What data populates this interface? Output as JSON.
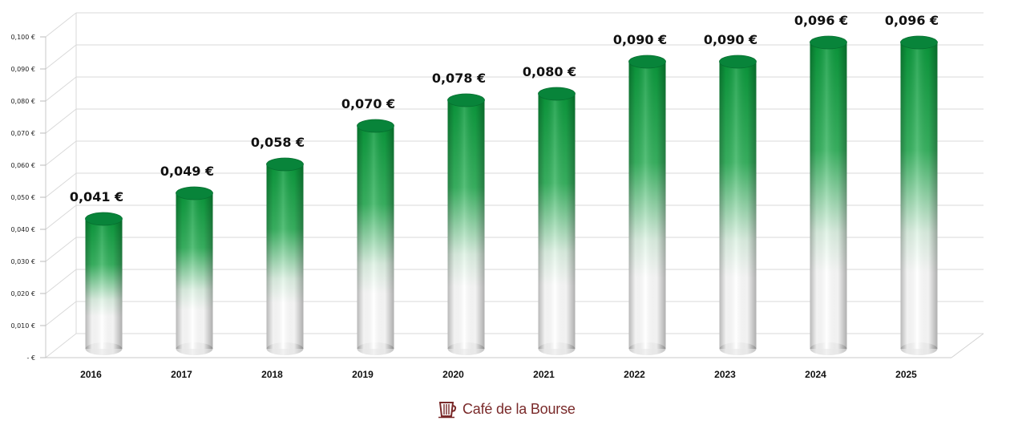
{
  "chart_data": {
    "type": "bar",
    "style": "3d-cylinder",
    "title": "",
    "xlabel": "",
    "ylabel": "",
    "categories": [
      "2016",
      "2017",
      "2018",
      "2019",
      "2020",
      "2021",
      "2022",
      "2023",
      "2024",
      "2025"
    ],
    "values": [
      0.041,
      0.049,
      0.058,
      0.07,
      0.078,
      0.08,
      0.09,
      0.09,
      0.096,
      0.096
    ],
    "data_labels": [
      "0,041 €",
      "0,049 €",
      "0,058 €",
      "0,070 €",
      "0,078 €",
      "0,080 €",
      "0,090 €",
      "0,090 €",
      "0,096 €",
      "0,096 €"
    ],
    "ylim": [
      0,
      0.1
    ],
    "y_ticks": [
      {
        "v": 0.0,
        "label": "-  €"
      },
      {
        "v": 0.01,
        "label": "0,010 €"
      },
      {
        "v": 0.02,
        "label": "0,020 €"
      },
      {
        "v": 0.03,
        "label": "0,030 €"
      },
      {
        "v": 0.04,
        "label": "0,040 €"
      },
      {
        "v": 0.05,
        "label": "0,050 €"
      },
      {
        "v": 0.06,
        "label": "0,060 €"
      },
      {
        "v": 0.07,
        "label": "0,070 €"
      },
      {
        "v": 0.08,
        "label": "0,080 €"
      },
      {
        "v": 0.09,
        "label": "0,090 €"
      },
      {
        "v": 0.1,
        "label": "0,100 €"
      }
    ],
    "grid": true,
    "legend": "none",
    "colors": {
      "bar_top": "#0a9a3c",
      "bar_bottom": "#ffffff",
      "grid": "#d9d9d9"
    }
  },
  "brand": {
    "name": "Café de la Bourse",
    "icon": "coffee-cup-icon",
    "color": "#7a2a2a"
  }
}
